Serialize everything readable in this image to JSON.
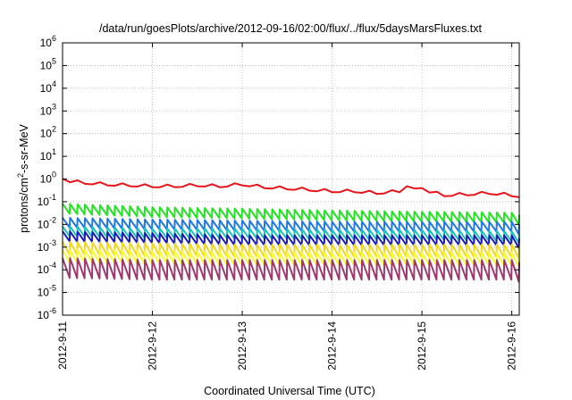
{
  "chart_data": {
    "type": "line",
    "title": "/data/run/goesPlots/archive/2012-09-16/02:00/flux/../flux/5daysMarsFluxes.txt",
    "xlabel": "Coordinated Universal Time (UTC)",
    "ylabel_parts": {
      "pre": "protons/cm",
      "sup": "2",
      "post": "-s-sr-MeV"
    },
    "y_scale": "log",
    "ylim": [
      1e-06,
      1000000.0
    ],
    "xlim": [
      "2012-09-11T00:00",
      "2012-09-16T02:00"
    ],
    "grid": true,
    "legend": "none",
    "x_ticks": [
      {
        "label": "2012-9-11",
        "value": "2012-09-11T00:00"
      },
      {
        "label": "2012-9-12",
        "value": "2012-09-12T00:00"
      },
      {
        "label": "2012-9-13",
        "value": "2012-09-13T00:00"
      },
      {
        "label": "2012-9-14",
        "value": "2012-09-14T00:00"
      },
      {
        "label": "2012-9-15",
        "value": "2012-09-15T00:00"
      },
      {
        "label": "2012-9-16",
        "value": "2012-09-16T00:00"
      }
    ],
    "y_ticks": [
      {
        "base": "10",
        "exp": "6",
        "value": 1000000.0
      },
      {
        "base": "10",
        "exp": "5",
        "value": 100000.0
      },
      {
        "base": "10",
        "exp": "4",
        "value": 10000.0
      },
      {
        "base": "10",
        "exp": "3",
        "value": 1000.0
      },
      {
        "base": "10",
        "exp": "2",
        "value": 100.0
      },
      {
        "base": "10",
        "exp": "1",
        "value": 10.0
      },
      {
        "base": "10",
        "exp": "0",
        "value": 1.0
      },
      {
        "base": "10",
        "exp": "-1",
        "value": 0.1
      },
      {
        "base": "10",
        "exp": "-2",
        "value": 0.01
      },
      {
        "base": "10",
        "exp": "-3",
        "value": 0.001
      },
      {
        "base": "10",
        "exp": "-4",
        "value": 0.0001
      },
      {
        "base": "10",
        "exp": "-5",
        "value": 1e-05
      },
      {
        "base": "10",
        "exp": "-6",
        "value": 1e-06
      }
    ],
    "series": [
      {
        "color": "#e8141b",
        "x": [
          "2012-09-11T00:00",
          "2012-09-11T06:00",
          "2012-09-11T12:00",
          "2012-09-11T18:00",
          "2012-09-12T00:00",
          "2012-09-12T06:00",
          "2012-09-12T12:00",
          "2012-09-12T18:00",
          "2012-09-13T00:00",
          "2012-09-13T06:00",
          "2012-09-13T12:00",
          "2012-09-13T18:00",
          "2012-09-14T00:00",
          "2012-09-14T06:00",
          "2012-09-14T12:00",
          "2012-09-14T18:00",
          "2012-09-14T20:00",
          "2012-09-15T00:00",
          "2012-09-15T06:00",
          "2012-09-15T12:00",
          "2012-09-15T18:00",
          "2012-09-16T00:00",
          "2012-09-16T02:00"
        ],
        "y": [
          0.9,
          0.7,
          0.6,
          0.55,
          0.5,
          0.5,
          0.55,
          0.5,
          0.6,
          0.45,
          0.4,
          0.35,
          0.3,
          0.3,
          0.25,
          0.3,
          0.55,
          0.35,
          0.2,
          0.22,
          0.25,
          0.2,
          0.18
        ]
      },
      {
        "color": "#1ee51e",
        "x": [
          "2012-09-11T00:00",
          "2012-09-12T00:00",
          "2012-09-13T00:00",
          "2012-09-14T00:00",
          "2012-09-15T00:00",
          "2012-09-16T00:00",
          "2012-09-16T02:00"
        ],
        "y": [
          0.05,
          0.035,
          0.03,
          0.025,
          0.022,
          0.02,
          0.016
        ]
      },
      {
        "color": "#1e78e6",
        "x": [
          "2012-09-11T00:00",
          "2012-09-12T00:00",
          "2012-09-13T00:00",
          "2012-09-14T00:00",
          "2012-09-15T00:00",
          "2012-09-16T00:00",
          "2012-09-16T02:00"
        ],
        "y": [
          0.012,
          0.01,
          0.009,
          0.008,
          0.008,
          0.008,
          0.006
        ]
      },
      {
        "color": "#17c4ba",
        "x": [
          "2012-09-11T00:00",
          "2012-09-12T00:00",
          "2012-09-13T00:00",
          "2012-09-14T00:00",
          "2012-09-15T00:00",
          "2012-09-16T00:00",
          "2012-09-16T02:00"
        ],
        "y": [
          0.005,
          0.004,
          0.004,
          0.0035,
          0.0035,
          0.003,
          0.0025
        ]
      },
      {
        "color": "#1a1ab8",
        "x": [
          "2012-09-11T00:00",
          "2012-09-12T00:00",
          "2012-09-13T00:00",
          "2012-09-14T00:00",
          "2012-09-15T00:00",
          "2012-09-16T00:00",
          "2012-09-16T02:00"
        ],
        "y": [
          0.003,
          0.0025,
          0.002,
          0.002,
          0.002,
          0.002,
          0.0015
        ]
      },
      {
        "color": "#f2d71b",
        "x": [
          "2012-09-11T00:00",
          "2012-09-12T00:00",
          "2012-09-13T00:00",
          "2012-09-14T00:00",
          "2012-09-15T00:00",
          "2012-09-16T00:00",
          "2012-09-16T02:00"
        ],
        "y": [
          0.0009,
          0.0008,
          0.0007,
          0.0007,
          0.0007,
          0.0007,
          0.0006
        ]
      },
      {
        "color": "#fafa32",
        "x": [
          "2012-09-11T00:00",
          "2012-09-12T00:00",
          "2012-09-13T00:00",
          "2012-09-14T00:00",
          "2012-09-15T00:00",
          "2012-09-16T00:00",
          "2012-09-16T02:00"
        ],
        "y": [
          0.0004,
          0.00035,
          0.0003,
          0.0003,
          0.0003,
          0.0003,
          0.00025
        ]
      },
      {
        "color": "#a0386e",
        "x": [
          "2012-09-11T00:00",
          "2012-09-12T00:00",
          "2012-09-13T00:00",
          "2012-09-14T00:00",
          "2012-09-15T00:00",
          "2012-09-16T00:00",
          "2012-09-16T02:00"
        ],
        "y": [
          0.00012,
          0.0001,
          0.0001,
          0.0001,
          0.0001,
          0.0001,
          8e-05
        ]
      }
    ]
  }
}
